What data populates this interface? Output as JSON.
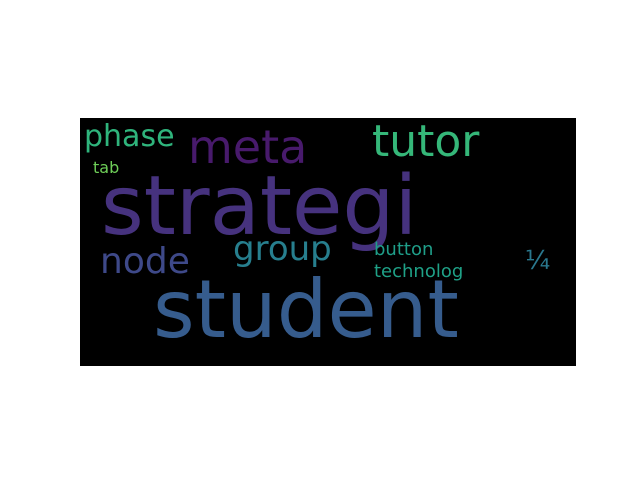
{
  "words": [
    {
      "text": "strategi",
      "color": "#46327e"
    },
    {
      "text": "student",
      "color": "#365c8d"
    },
    {
      "text": "meta",
      "color": "#481a6c"
    },
    {
      "text": "tutor",
      "color": "#35b779"
    },
    {
      "text": "phase",
      "color": "#2fb47c"
    },
    {
      "text": "node",
      "color": "#3e4989"
    },
    {
      "text": "group",
      "color": "#277f8e"
    },
    {
      "text": "button",
      "color": "#1f9e89"
    },
    {
      "text": "technolog",
      "color": "#1fa187"
    },
    {
      "text": "¼",
      "color": "#2a788e"
    },
    {
      "text": "tab",
      "color": "#6ece58"
    }
  ],
  "background_color": "#000000"
}
